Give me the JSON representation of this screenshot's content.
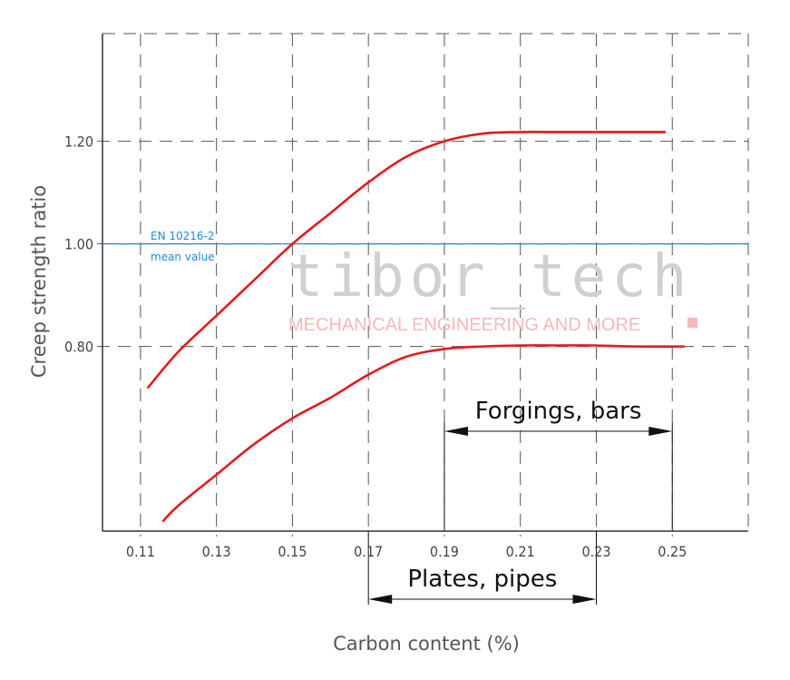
{
  "chart_data": {
    "type": "line",
    "xlabel": "Carbon content (%)",
    "ylabel": "Creep strength ratio",
    "xlim": [
      0.1,
      0.27
    ],
    "ylim": [
      0.44,
      1.41
    ],
    "x_ticks": [
      "0.11",
      "0.13",
      "0.15",
      "0.17",
      "0.19",
      "0.21",
      "0.23",
      "0.25"
    ],
    "y_ticks": [
      "0.80",
      "1.00",
      "1.20"
    ],
    "grid": true,
    "series": [
      {
        "x": [
          0.112,
          0.12,
          0.13,
          0.14,
          0.15,
          0.16,
          0.17,
          0.18,
          0.19,
          0.2,
          0.21,
          0.22,
          0.23,
          0.24,
          0.248
        ],
        "values": [
          0.72,
          0.79,
          0.86,
          0.93,
          1.0,
          1.06,
          1.12,
          1.17,
          1.2,
          1.215,
          1.218,
          1.218,
          1.218,
          1.218,
          1.218
        ],
        "color": "#e41a1c"
      },
      {
        "x": [
          0.116,
          0.12,
          0.13,
          0.14,
          0.15,
          0.16,
          0.17,
          0.18,
          0.19,
          0.2,
          0.21,
          0.22,
          0.23,
          0.24,
          0.253
        ],
        "values": [
          0.46,
          0.49,
          0.55,
          0.61,
          0.66,
          0.7,
          0.745,
          0.78,
          0.795,
          0.8,
          0.802,
          0.802,
          0.802,
          0.8,
          0.8
        ],
        "color": "#e41a1c"
      }
    ],
    "reference_line": {
      "y": 1.0,
      "label_line1": "EN 10216-2",
      "label_line2": "mean value",
      "color": "#1e88e5"
    },
    "annotations": [
      {
        "text": "Forgings, bars",
        "x_start": 0.19,
        "x_end": 0.25,
        "y": 0.6
      },
      {
        "text": "Plates, pipes",
        "x_start": 0.17,
        "x_end": 0.23,
        "y": 0.3
      }
    ]
  },
  "watermark": {
    "text": "tibor_tech",
    "tagline": "MECHANICAL ENGINEERING AND MORE"
  }
}
